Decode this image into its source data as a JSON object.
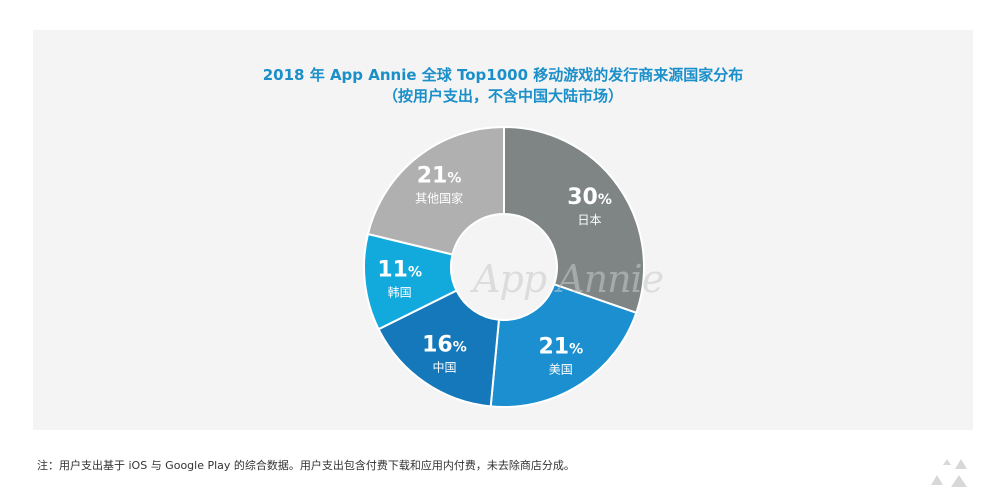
{
  "title_line1": "2018 年 App Annie 全球 Top1000 移动游戏的发行商来源国家分布",
  "title_line2": "（按用户支出，不含中国大陆市场）",
  "watermark": "App Annie",
  "footnote": "注：用户支出基于 iOS 与 Google Play 的综合数据。用户支出包含付费下载和应用内付费，未去除商店分成。",
  "colors": {
    "title": "#1a8fc9",
    "panel": "#f4f4f4"
  },
  "chart_data": {
    "type": "pie",
    "donut": true,
    "categories": [
      "日本",
      "美国",
      "中国",
      "韩国",
      "其他国家"
    ],
    "values": [
      30,
      21,
      16,
      11,
      21
    ],
    "value_labels": [
      "30",
      "21",
      "16",
      "11",
      "21"
    ],
    "unit": "%",
    "colors": [
      "#7f8585",
      "#1b8fd0",
      "#1478ba",
      "#12a9dc",
      "#b0b0b0"
    ]
  }
}
